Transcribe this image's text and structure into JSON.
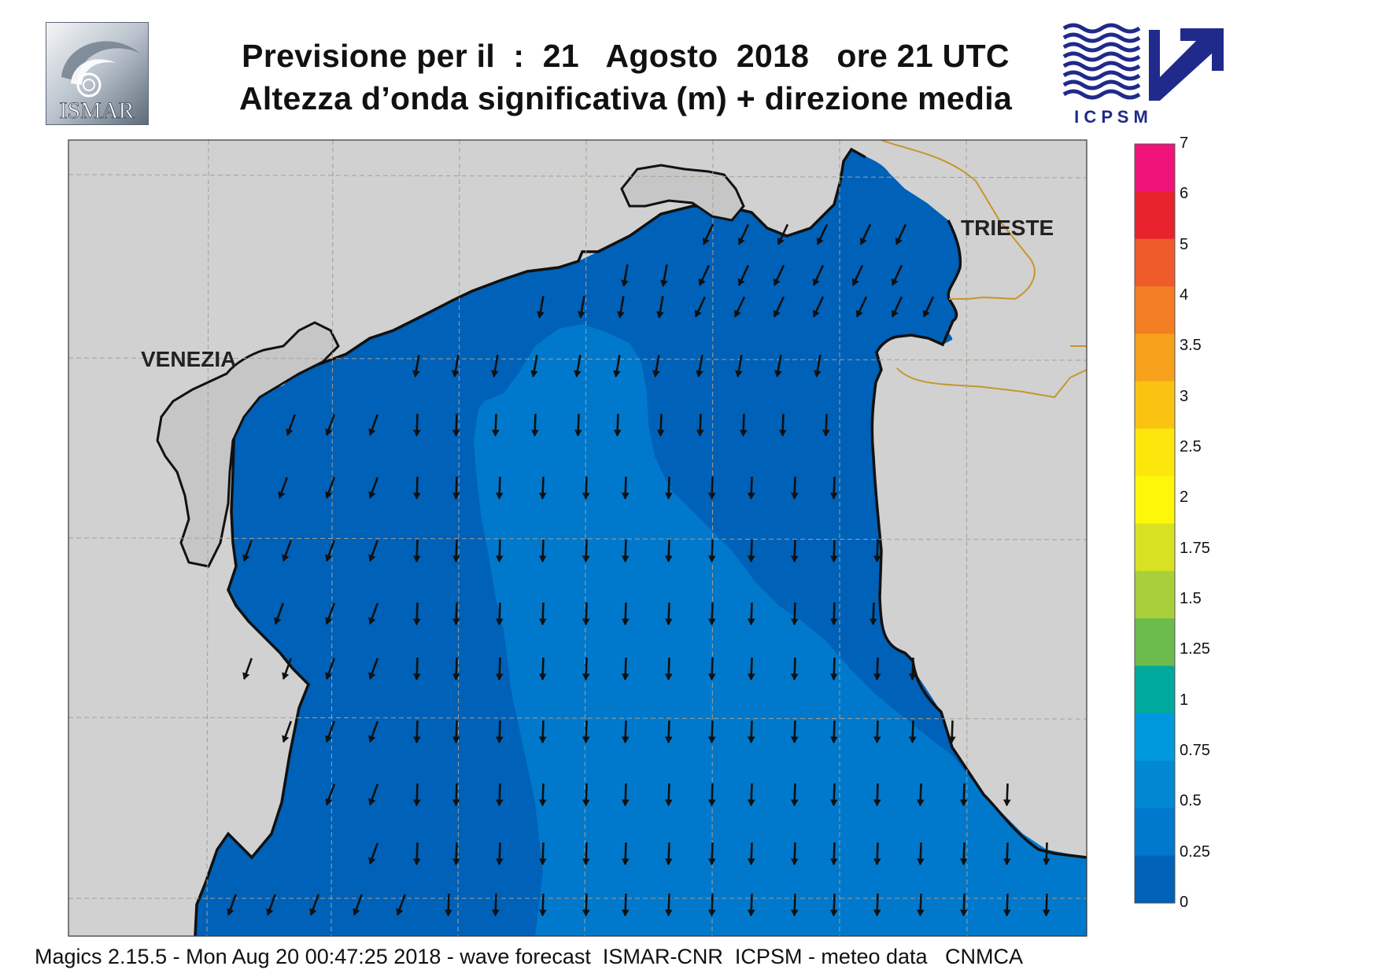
{
  "header": {
    "title_line1": "Previsione per il  :  21   Agosto  2018   ore 21 UTC",
    "title_line2": "Altezza d’onda significativa (m) + direzione media"
  },
  "logos": {
    "left": {
      "text": "ISMAR",
      "icon": "ismar-logo-icon"
    },
    "right": {
      "text": "I C P S M",
      "icon": "icpsm-wave-arrow-icon"
    }
  },
  "map": {
    "cities": [
      {
        "id": "venezia",
        "label": "VENEZIA"
      },
      {
        "id": "trieste",
        "label": "TRIESTE"
      }
    ],
    "colors": {
      "land": "#d1d1d1",
      "sea_0_025": "#0061b8",
      "sea_025_05": "#0079cc",
      "border": "#c8952c",
      "grid": "#a89f8f"
    },
    "arrow_direction": "mostly southward, south-west in the north-east sector"
  },
  "color_scale": {
    "ticks": [
      "7",
      "6",
      "5",
      "4",
      "3.5",
      "3",
      "2.5",
      "2",
      "1.75",
      "1.5",
      "1.25",
      "1",
      "0.75",
      "0.5",
      "0.25",
      "0"
    ],
    "colors": [
      "#f0147a",
      "#e8232d",
      "#ee5a2a",
      "#f47e24",
      "#f7a11d",
      "#fac312",
      "#fde60c",
      "#fff70a",
      "#d8e222",
      "#a9cf3a",
      "#6bbc4c",
      "#00a99d",
      "#0098dc",
      "#0089d2",
      "#0079cc",
      "#0061b8"
    ]
  },
  "footer": {
    "text": "Magics 2.15.5 - Mon Aug 20 00:47:25 2018 - wave forecast  ISMAR-CNR  ICPSM - meteo data   CNMCA"
  }
}
